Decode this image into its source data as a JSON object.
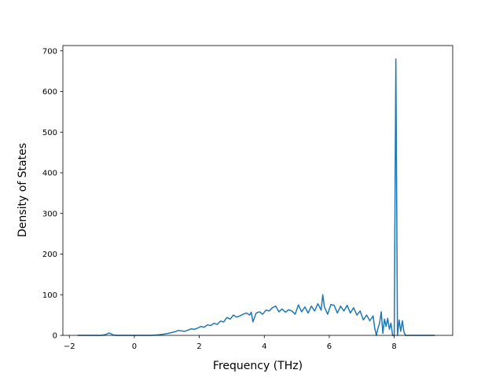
{
  "chart_data": {
    "type": "line",
    "title": "",
    "xlabel": "Frequency (THz)",
    "ylabel": "Density of States",
    "xlim": [
      -2.2,
      9.8
    ],
    "ylim": [
      0,
      713
    ],
    "x_ticks": [
      -2,
      0,
      2,
      4,
      6,
      8
    ],
    "y_ticks": [
      0,
      100,
      200,
      300,
      400,
      500,
      600,
      700
    ],
    "x_tick_labels": [
      "−2",
      "0",
      "2",
      "4",
      "6",
      "8"
    ],
    "y_tick_labels": [
      "0",
      "100",
      "200",
      "300",
      "400",
      "500",
      "600",
      "700"
    ],
    "grid": false,
    "series": [
      {
        "color": "#1f77b4",
        "x": [
          -1.75,
          -1.5,
          -1.2,
          -1.0,
          -0.85,
          -0.78,
          -0.72,
          -0.65,
          -0.55,
          -0.45,
          -0.3,
          -0.1,
          0.1,
          0.3,
          0.5,
          0.7,
          0.9,
          1.05,
          1.15,
          1.25,
          1.35,
          1.45,
          1.55,
          1.65,
          1.75,
          1.85,
          1.95,
          2.05,
          2.15,
          2.25,
          2.35,
          2.45,
          2.55,
          2.65,
          2.75,
          2.85,
          2.95,
          3.05,
          3.15,
          3.25,
          3.35,
          3.45,
          3.55,
          3.6,
          3.65,
          3.75,
          3.85,
          3.95,
          4.05,
          4.15,
          4.25,
          4.35,
          4.45,
          4.55,
          4.65,
          4.75,
          4.85,
          4.95,
          5.05,
          5.15,
          5.25,
          5.35,
          5.45,
          5.55,
          5.65,
          5.75,
          5.8,
          5.85,
          5.95,
          6.05,
          6.15,
          6.25,
          6.35,
          6.45,
          6.55,
          6.65,
          6.75,
          6.85,
          6.95,
          7.05,
          7.15,
          7.25,
          7.35,
          7.4,
          7.45,
          7.5,
          7.55,
          7.6,
          7.65,
          7.7,
          7.75,
          7.8,
          7.85,
          7.9,
          7.95,
          8.0,
          8.05,
          8.1,
          8.15,
          8.2,
          8.25,
          8.3,
          8.35,
          8.45,
          8.7,
          9.25
        ],
        "y": [
          0,
          0,
          0,
          0,
          3,
          6,
          4,
          1,
          0,
          0,
          0,
          0,
          0,
          0,
          0,
          1,
          3,
          5,
          7,
          9,
          12,
          11,
          10,
          13,
          16,
          15,
          18,
          22,
          20,
          26,
          24,
          30,
          27,
          35,
          33,
          44,
          40,
          50,
          45,
          48,
          52,
          55,
          50,
          57,
          33,
          55,
          58,
          52,
          62,
          60,
          68,
          72,
          58,
          65,
          57,
          63,
          60,
          52,
          75,
          58,
          70,
          55,
          72,
          60,
          78,
          62,
          100,
          70,
          52,
          76,
          74,
          55,
          72,
          60,
          74,
          55,
          68,
          50,
          60,
          38,
          50,
          36,
          48,
          18,
          0,
          18,
          30,
          58,
          5,
          40,
          22,
          42,
          15,
          30,
          0,
          0,
          680,
          0,
          38,
          10,
          36,
          8,
          0,
          0,
          0,
          0
        ]
      }
    ]
  }
}
